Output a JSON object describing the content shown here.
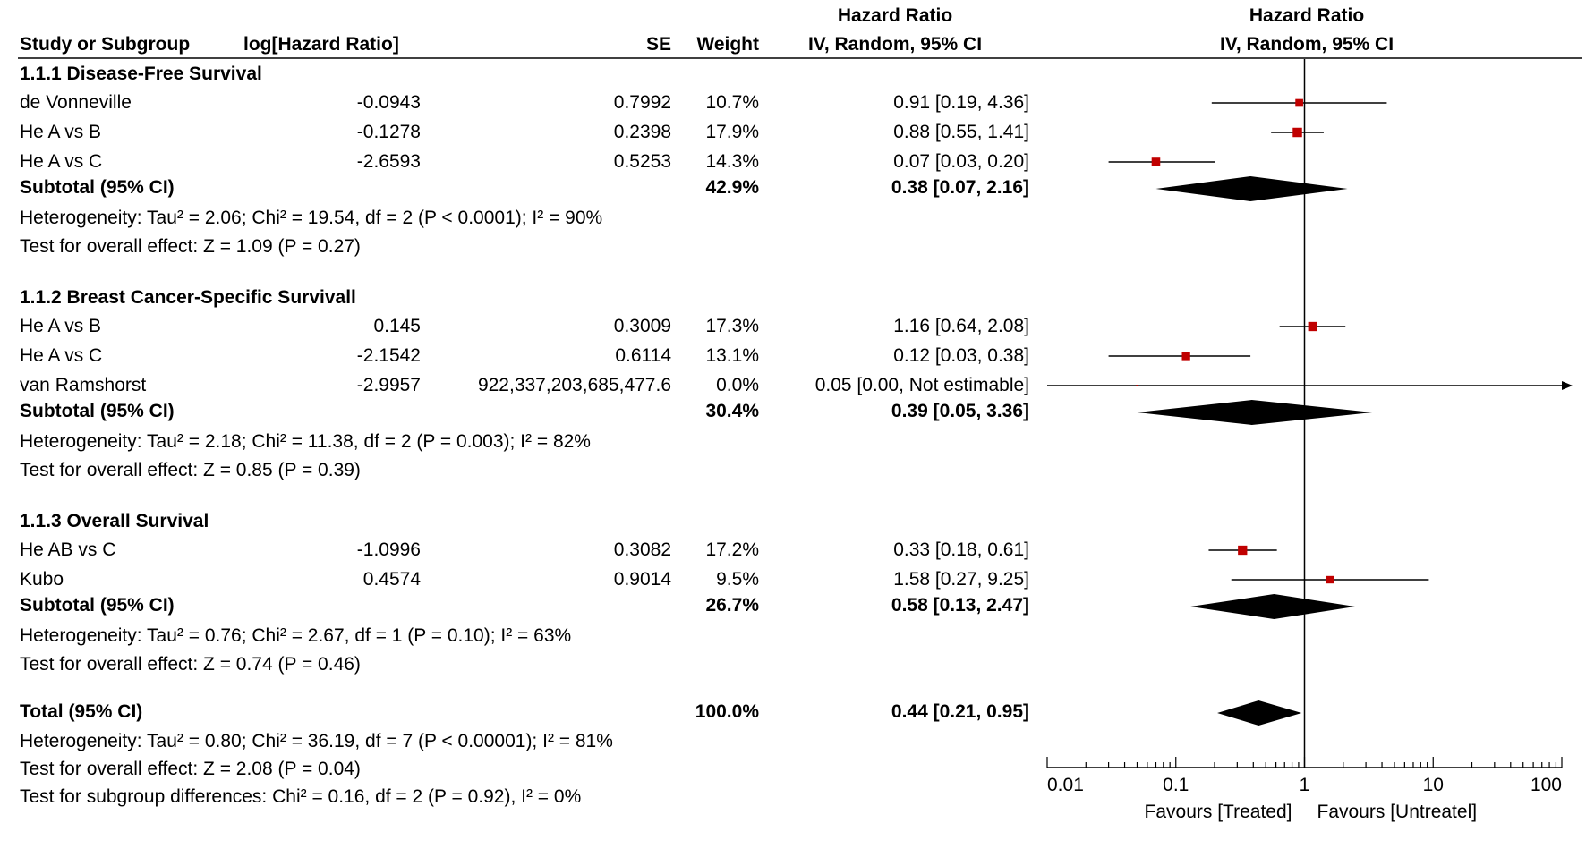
{
  "header": {
    "study": "Study or Subgroup",
    "loghr": "log[Hazard Ratio]",
    "se": "SE",
    "weight": "Weight",
    "hr_title": "Hazard Ratio",
    "hr_method": "IV, Random, 95% CI",
    "plot_title": "Hazard Ratio",
    "plot_method": "IV, Random, 95% CI"
  },
  "chart_data": {
    "type": "forest",
    "x_scale": "log",
    "xlim": [
      0.01,
      100
    ],
    "reference_line": 1,
    "x_ticks": [
      "0.01",
      "0.1",
      "1",
      "10",
      "100"
    ],
    "favours_left": "Favours [Treated]",
    "favours_right": "Favours [Untreatel]",
    "colors": {
      "study_marker": "#c00000",
      "diamond": "#000000",
      "axis": "#000000"
    },
    "groups": [
      {
        "title": "1.1.1 Disease-Free Survival",
        "studies": [
          {
            "name": "de Vonneville",
            "loghr": "-0.0943",
            "se": "0.7992",
            "weight": "10.7%",
            "ci_text": "0.91 [0.19, 4.36]",
            "hr": 0.91,
            "lo": 0.19,
            "hi": 4.36,
            "w": 10.7,
            "arrow_right": false
          },
          {
            "name": "He A vs B",
            "loghr": "-0.1278",
            "se": "0.2398",
            "weight": "17.9%",
            "ci_text": "0.88 [0.55, 1.41]",
            "hr": 0.88,
            "lo": 0.55,
            "hi": 1.41,
            "w": 17.9,
            "arrow_right": false
          },
          {
            "name": "He A vs C",
            "loghr": "-2.6593",
            "se": "0.5253",
            "weight": "14.3%",
            "ci_text": "0.07 [0.03, 0.20]",
            "hr": 0.07,
            "lo": 0.03,
            "hi": 0.2,
            "w": 14.3,
            "arrow_right": false
          }
        ],
        "subtotal": {
          "label": "Subtotal (95% CI)",
          "weight": "42.9%",
          "ci_text": "0.38 [0.07, 2.16]",
          "hr": 0.38,
          "lo": 0.07,
          "hi": 2.16
        },
        "heterogeneity": "Heterogeneity: Tau² = 2.06; Chi² = 19.54, df = 2 (P < 0.0001); I² = 90%",
        "overall": "Test for overall effect: Z = 1.09 (P = 0.27)"
      },
      {
        "title": "1.1.2 Breast Cancer-Specific Survivall",
        "studies": [
          {
            "name": "He A vs B",
            "loghr": "0.145",
            "se": "0.3009",
            "weight": "17.3%",
            "ci_text": "1.16 [0.64, 2.08]",
            "hr": 1.16,
            "lo": 0.64,
            "hi": 2.08,
            "w": 17.3,
            "arrow_right": false
          },
          {
            "name": "He A vs C",
            "loghr": "-2.1542",
            "se": "0.6114",
            "weight": "13.1%",
            "ci_text": "0.12 [0.03, 0.38]",
            "hr": 0.12,
            "lo": 0.03,
            "hi": 0.38,
            "w": 13.1,
            "arrow_right": false
          },
          {
            "name": "van Ramshorst",
            "loghr": "-2.9957",
            "se": "922,337,203,685,477.6",
            "weight": "0.0%",
            "ci_text": "0.05 [0.00, Not estimable]",
            "hr": 0.05,
            "lo": 0.01,
            "hi": 100,
            "w": 0,
            "arrow_right": true
          }
        ],
        "subtotal": {
          "label": "Subtotal (95% CI)",
          "weight": "30.4%",
          "ci_text": "0.39 [0.05, 3.36]",
          "hr": 0.39,
          "lo": 0.05,
          "hi": 3.36
        },
        "heterogeneity": "Heterogeneity: Tau² = 2.18; Chi² = 11.38, df = 2 (P = 0.003); I² = 82%",
        "overall": "Test for overall effect: Z = 0.85 (P = 0.39)"
      },
      {
        "title": "1.1.3 Overall Survival",
        "studies": [
          {
            "name": "He AB vs C",
            "loghr": "-1.0996",
            "se": "0.3082",
            "weight": "17.2%",
            "ci_text": "0.33 [0.18, 0.61]",
            "hr": 0.33,
            "lo": 0.18,
            "hi": 0.61,
            "w": 17.2,
            "arrow_right": false
          },
          {
            "name": "Kubo",
            "loghr": "0.4574",
            "se": "0.9014",
            "weight": "9.5%",
            "ci_text": "1.58 [0.27, 9.25]",
            "hr": 1.58,
            "lo": 0.27,
            "hi": 9.25,
            "w": 9.5,
            "arrow_right": false
          }
        ],
        "subtotal": {
          "label": "Subtotal (95% CI)",
          "weight": "26.7%",
          "ci_text": "0.58 [0.13, 2.47]",
          "hr": 0.58,
          "lo": 0.13,
          "hi": 2.47
        },
        "heterogeneity": "Heterogeneity: Tau² = 0.76; Chi² = 2.67, df = 1 (P = 0.10); I² = 63%",
        "overall": "Test for overall effect: Z = 0.74 (P = 0.46)"
      }
    ],
    "total": {
      "label": "Total (95% CI)",
      "weight": "100.0%",
      "ci_text": "0.44 [0.21, 0.95]",
      "hr": 0.44,
      "lo": 0.21,
      "hi": 0.95,
      "heterogeneity": "Heterogeneity: Tau² = 0.80; Chi² = 36.19, df = 7 (P < 0.00001); I² = 81%",
      "overall": "Test for overall effect: Z = 2.08 (P = 0.04)",
      "subgroup": "Test for subgroup differences: Chi² = 0.16, df = 2 (P = 0.92), I² = 0%"
    }
  }
}
